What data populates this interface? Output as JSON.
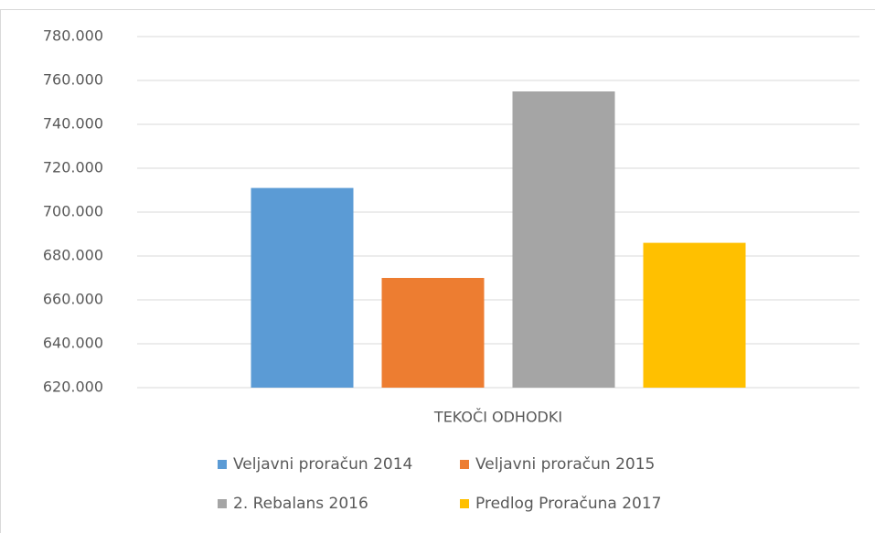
{
  "chart_data": {
    "type": "bar",
    "categories": [
      "TEKOČI ODHODKI"
    ],
    "series": [
      {
        "name": "Veljavni proračun 2014",
        "color": "#5b9bd5",
        "values": [
          711000
        ]
      },
      {
        "name": "Veljavni proračun 2015",
        "color": "#ed7d31",
        "values": [
          670000
        ]
      },
      {
        "name": "2. Rebalans 2016",
        "color": "#a5a5a5",
        "values": [
          755000
        ]
      },
      {
        "name": "Predlog Proračuna 2017",
        "color": "#ffc000",
        "values": [
          686000
        ]
      }
    ],
    "ylim": [
      620000,
      780000
    ],
    "yticks": [
      {
        "value": 620000,
        "label": "620.000"
      },
      {
        "value": 640000,
        "label": "640.000"
      },
      {
        "value": 660000,
        "label": "660.000"
      },
      {
        "value": 680000,
        "label": "680.000"
      },
      {
        "value": 700000,
        "label": "700.000"
      },
      {
        "value": 720000,
        "label": "720.000"
      },
      {
        "value": 740000,
        "label": "740.000"
      },
      {
        "value": 760000,
        "label": "760.000"
      },
      {
        "value": 780000,
        "label": "780.000"
      }
    ],
    "grid": true,
    "legend": "bottom"
  }
}
